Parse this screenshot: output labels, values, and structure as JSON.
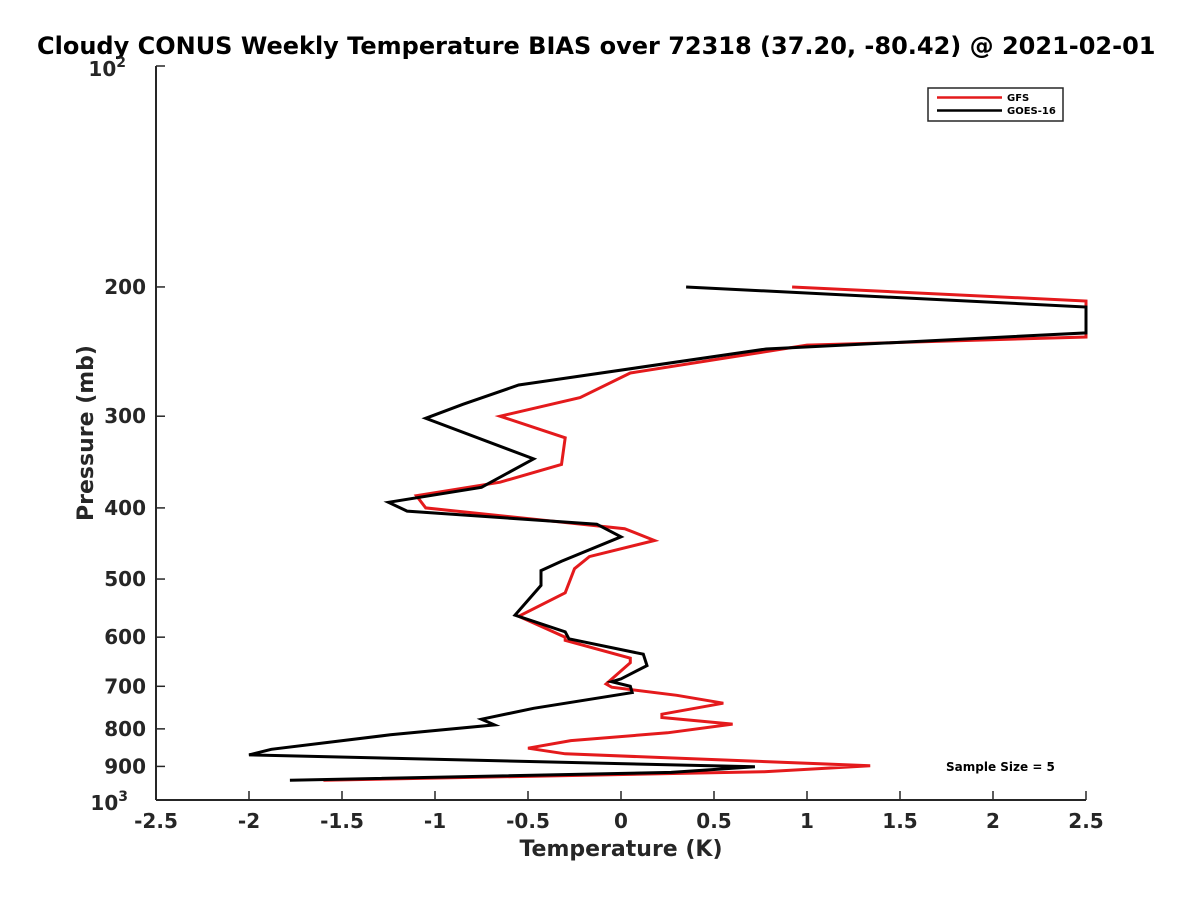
{
  "chart_data": {
    "type": "line",
    "title": "Cloudy CONUS Weekly Temperature BIAS over 72318 (37.20, -80.42) @ 2021-02-01",
    "xlabel": "Temperature (K)",
    "ylabel": "Pressure (mb)",
    "xlim": [
      -2.5,
      2.5
    ],
    "ylim": [
      100,
      1000
    ],
    "yscale": "log",
    "y_reversed": true,
    "x_ticks": [
      -2.5,
      -2,
      -1.5,
      -1,
      -0.5,
      0,
      0.5,
      1,
      1.5,
      2,
      2.5
    ],
    "x_tick_labels": [
      "-2.5",
      "-2",
      "-1.5",
      "-1",
      "-0.5",
      "0",
      "0.5",
      "1",
      "1.5",
      "2",
      "2.5"
    ],
    "y_ticks": [
      200,
      300,
      400,
      500,
      600,
      700,
      800,
      900
    ],
    "y_tick_labels": [
      "200",
      "300",
      "400",
      "500",
      "600",
      "700",
      "800",
      "900"
    ],
    "y_top_label": {
      "base": "10",
      "exp": "2"
    },
    "y_bottom_label": {
      "base": "10",
      "exp": "3"
    },
    "legend_position": "top-right",
    "annotation": "Sample Size = 5",
    "series": [
      {
        "name": "GFS",
        "color": "#e41a1c",
        "points": [
          [
            0.92,
            200
          ],
          [
            2.5,
            209
          ],
          [
            2.5,
            234
          ],
          [
            1.0,
            240
          ],
          [
            0.05,
            262
          ],
          [
            -0.22,
            283
          ],
          [
            -0.65,
            300
          ],
          [
            -0.3,
            321
          ],
          [
            -0.32,
            349
          ],
          [
            -0.65,
            369
          ],
          [
            -1.1,
            385
          ],
          [
            -1.05,
            400
          ],
          [
            0.02,
            427
          ],
          [
            0.18,
            443
          ],
          [
            -0.17,
            466
          ],
          [
            -0.25,
            484
          ],
          [
            -0.3,
            522
          ],
          [
            -0.55,
            562
          ],
          [
            -0.3,
            600
          ],
          [
            -0.3,
            606
          ],
          [
            0.05,
            641
          ],
          [
            0.05,
            650
          ],
          [
            -0.08,
            695
          ],
          [
            -0.05,
            702
          ],
          [
            0.3,
            720
          ],
          [
            0.55,
            738
          ],
          [
            0.22,
            764
          ],
          [
            0.22,
            772
          ],
          [
            0.6,
            788
          ],
          [
            0.25,
            810
          ],
          [
            -0.27,
            830
          ],
          [
            -0.5,
            850
          ],
          [
            -0.3,
            865
          ],
          [
            1.34,
            898
          ],
          [
            0.77,
            915
          ],
          [
            -1.6,
            940
          ]
        ]
      },
      {
        "name": "GOES-16",
        "color": "#000000",
        "points": [
          [
            0.35,
            200
          ],
          [
            2.5,
            213
          ],
          [
            2.5,
            231
          ],
          [
            0.78,
            243
          ],
          [
            -0.55,
            272
          ],
          [
            -0.85,
            289
          ],
          [
            -1.05,
            302
          ],
          [
            -0.47,
            343
          ],
          [
            -0.75,
            375
          ],
          [
            -1.25,
            393
          ],
          [
            -1.15,
            404
          ],
          [
            -0.13,
            421
          ],
          [
            0.0,
            438
          ],
          [
            -0.32,
            473
          ],
          [
            -0.43,
            487
          ],
          [
            -0.43,
            510
          ],
          [
            -0.57,
            560
          ],
          [
            -0.3,
            590
          ],
          [
            -0.28,
            603
          ],
          [
            0.12,
            633
          ],
          [
            0.14,
            656
          ],
          [
            0.0,
            684
          ],
          [
            -0.05,
            690
          ],
          [
            0.05,
            700
          ],
          [
            0.06,
            714
          ],
          [
            -0.47,
            750
          ],
          [
            -0.75,
            776
          ],
          [
            -0.68,
            790
          ],
          [
            -1.24,
            815
          ],
          [
            -1.88,
            853
          ],
          [
            -2.0,
            868
          ],
          [
            0.72,
            901
          ],
          [
            0.27,
            917
          ],
          [
            -1.78,
            940
          ]
        ]
      }
    ]
  }
}
